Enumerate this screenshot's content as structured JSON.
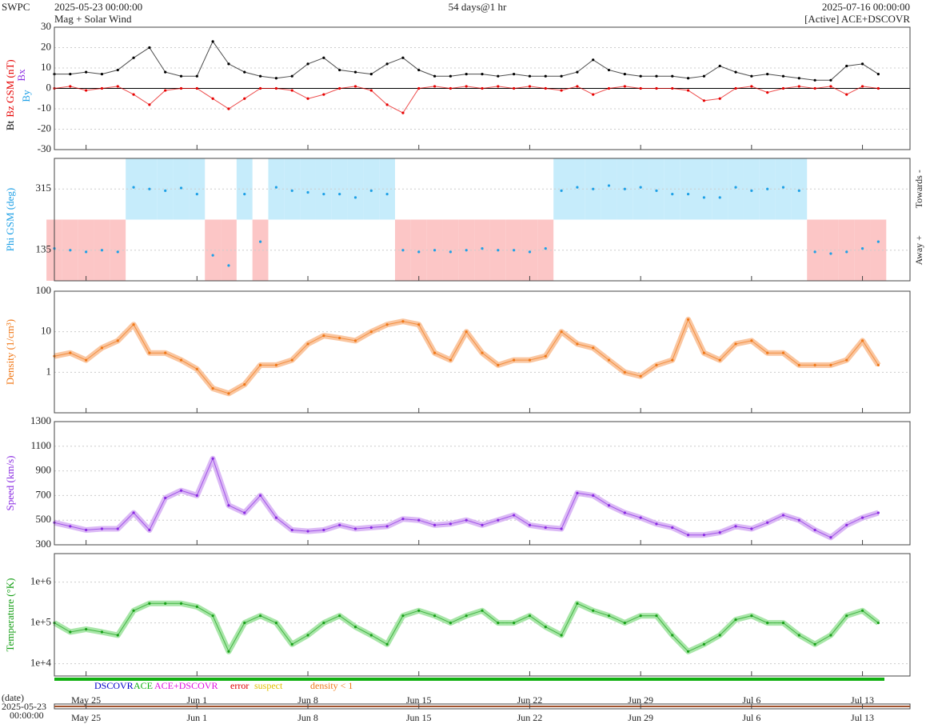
{
  "header": {
    "org": "SWPC",
    "start": "2025-05-23 00:00:00",
    "subtitle": "Mag + Solar Wind",
    "span": "54 days@1 hr",
    "end": "2025-07-16 00:00:00",
    "source": "[Active] ACE+DSCOVR"
  },
  "time_axis": {
    "xlim": [
      "2025-05-23",
      "2025-07-16"
    ],
    "xticks": [
      {
        "value": "2025-05-25",
        "label": "May 25"
      },
      {
        "value": "2025-06-01",
        "label": "Jun 1"
      },
      {
        "value": "2025-06-08",
        "label": "Jun 8"
      },
      {
        "value": "2025-06-15",
        "label": "Jun 15"
      },
      {
        "value": "2025-06-22",
        "label": "Jun 22"
      },
      {
        "value": "2025-06-29",
        "label": "Jun 29"
      },
      {
        "value": "2025-07-06",
        "label": "Jul 6"
      },
      {
        "value": "2025-07-13",
        "label": "Jul 13"
      }
    ],
    "x": [
      "2025-05-23",
      "2025-05-24",
      "2025-05-25",
      "2025-05-26",
      "2025-05-27",
      "2025-05-28",
      "2025-05-29",
      "2025-05-30",
      "2025-05-31",
      "2025-06-01",
      "2025-06-02",
      "2025-06-03",
      "2025-06-04",
      "2025-06-05",
      "2025-06-06",
      "2025-06-07",
      "2025-06-08",
      "2025-06-09",
      "2025-06-10",
      "2025-06-11",
      "2025-06-12",
      "2025-06-13",
      "2025-06-14",
      "2025-06-15",
      "2025-06-16",
      "2025-06-17",
      "2025-06-18",
      "2025-06-19",
      "2025-06-20",
      "2025-06-21",
      "2025-06-22",
      "2025-06-23",
      "2025-06-24",
      "2025-06-25",
      "2025-06-26",
      "2025-06-27",
      "2025-06-28",
      "2025-06-29",
      "2025-06-30",
      "2025-07-01",
      "2025-07-02",
      "2025-07-03",
      "2025-07-04",
      "2025-07-05",
      "2025-07-06",
      "2025-07-07",
      "2025-07-08",
      "2025-07-09",
      "2025-07-10",
      "2025-07-11",
      "2025-07-12",
      "2025-07-13",
      "2025-07-14"
    ],
    "label": "(date)",
    "time": "00:00:00"
  },
  "chart_data": [
    {
      "type": "line",
      "ylabel": "Bz GSM (nT)",
      "axis_notes": [
        "Bx",
        "By"
      ],
      "ylim": [
        -30,
        30
      ],
      "yticks": [
        -30,
        -20,
        -10,
        0,
        10,
        20,
        30
      ],
      "grid": true,
      "series": [
        {
          "name": "Bt",
          "color": "#000000",
          "values": [
            7,
            7,
            8,
            7,
            9,
            15,
            20,
            8,
            6,
            6,
            23,
            12,
            8,
            6,
            5,
            6,
            12,
            15,
            9,
            8,
            7,
            12,
            15,
            9,
            6,
            6,
            7,
            7,
            6,
            7,
            6,
            6,
            6,
            8,
            14,
            9,
            7,
            6,
            6,
            6,
            5,
            6,
            11,
            8,
            6,
            7,
            6,
            5,
            4,
            4,
            11,
            12,
            7
          ]
        },
        {
          "color": "#e60000",
          "values": [
            0,
            1,
            -1,
            0,
            1,
            -3,
            -8,
            -1,
            0,
            0,
            -5,
            -10,
            -5,
            0,
            0,
            -1,
            -5,
            -3,
            0,
            1,
            -1,
            -8,
            -12,
            0,
            1,
            0,
            1,
            0,
            1,
            0,
            1,
            0,
            -1,
            1,
            -3,
            0,
            1,
            0,
            0,
            0,
            -1,
            -6,
            -5,
            0,
            1,
            -2,
            0,
            1,
            0,
            1,
            -3,
            1,
            0
          ]
        }
      ]
    },
    {
      "type": "phi",
      "ylabel": "Phi GSM (deg)",
      "right_labels": [
        "Towards -",
        "Away +"
      ],
      "ylim": [
        45,
        405
      ],
      "yticks": [
        135,
        315
      ],
      "grid": true,
      "shading": [
        "#c6ecfb",
        "#fcc6c6"
      ],
      "series": [
        {
          "color": "#1ea0e6",
          "values": [
            140,
            135,
            130,
            135,
            130,
            320,
            315,
            310,
            318,
            300,
            120,
            90,
            300,
            160,
            320,
            310,
            305,
            300,
            300,
            290,
            310,
            300,
            135,
            130,
            135,
            130,
            135,
            140,
            135,
            135,
            130,
            140,
            310,
            320,
            315,
            325,
            315,
            320,
            310,
            300,
            300,
            290,
            290,
            320,
            310,
            315,
            320,
            310,
            130,
            125,
            130,
            140,
            160
          ]
        }
      ]
    },
    {
      "type": "line",
      "ylabel": "Density (1/cm³)",
      "log": true,
      "ylim": [
        0.1,
        100
      ],
      "yticks": [
        1,
        10,
        100
      ],
      "grid": true,
      "series": [
        {
          "color": "#f07818",
          "band": "#f9b888",
          "values": [
            2.5,
            3,
            2,
            4,
            6,
            15,
            3,
            3,
            2,
            1.2,
            0.4,
            0.3,
            0.5,
            1.5,
            1.5,
            2,
            5,
            8,
            7,
            6,
            10,
            15,
            18,
            15,
            3,
            2,
            10,
            3,
            1.5,
            2,
            2,
            2.5,
            10,
            5,
            4,
            2,
            1,
            0.8,
            1.5,
            2,
            20,
            3,
            2,
            5,
            6,
            3,
            3,
            1.5,
            1.5,
            1.5,
            2,
            6,
            1.5
          ]
        }
      ]
    },
    {
      "type": "line",
      "ylabel": "Speed (km/s)",
      "ylim": [
        300,
        1300
      ],
      "yticks": [
        300,
        500,
        700,
        900,
        1100,
        1300
      ],
      "grid": true,
      "series": [
        {
          "color": "#8a2be2",
          "band": "#d2a8f2",
          "values": [
            480,
            450,
            420,
            430,
            430,
            560,
            420,
            680,
            740,
            700,
            1000,
            620,
            560,
            700,
            520,
            420,
            410,
            420,
            460,
            430,
            440,
            450,
            510,
            500,
            460,
            470,
            500,
            460,
            500,
            540,
            460,
            440,
            430,
            720,
            700,
            620,
            560,
            520,
            470,
            440,
            380,
            380,
            400,
            450,
            430,
            480,
            540,
            500,
            420,
            360,
            460,
            520,
            560
          ]
        }
      ]
    },
    {
      "type": "line",
      "ylabel": "Temperature (°K)",
      "log": true,
      "ylim": [
        5000,
        5000000
      ],
      "yticks": [
        {
          "value": 10000,
          "label": "1e+4"
        },
        {
          "value": 100000,
          "label": "1e+5"
        },
        {
          "value": 1000000,
          "label": "1e+6"
        }
      ],
      "grid": true,
      "series": [
        {
          "color": "#18a018",
          "band": "#92e092",
          "values": [
            100000,
            60000,
            70000,
            60000,
            50000,
            200000,
            300000,
            300000,
            300000,
            250000,
            150000,
            20000,
            100000,
            150000,
            100000,
            30000,
            50000,
            100000,
            150000,
            80000,
            50000,
            30000,
            150000,
            200000,
            150000,
            100000,
            150000,
            200000,
            100000,
            100000,
            150000,
            80000,
            50000,
            300000,
            200000,
            150000,
            100000,
            150000,
            150000,
            50000,
            20000,
            30000,
            50000,
            120000,
            150000,
            100000,
            100000,
            50000,
            30000,
            50000,
            150000,
            200000,
            100000
          ]
        }
      ]
    }
  ],
  "sources": [
    {
      "name": "DSCOVR",
      "color": "#0000c8"
    },
    {
      "name": "ACE",
      "color": "#10b010"
    },
    {
      "name": "ACE+DSCOVR",
      "color": "#e010e0"
    },
    {
      "name": "error",
      "color": "#e00000"
    },
    {
      "name": "suspect",
      "color": "#e0c000"
    },
    {
      "name": "density < 1",
      "color": "#f07818"
    }
  ]
}
